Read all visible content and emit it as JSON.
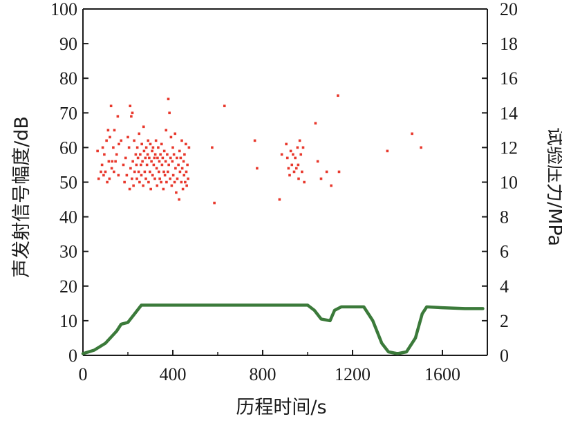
{
  "chart_data": {
    "type": "scatter",
    "xlabel": "历程时间/s",
    "ylabel_left": "声发射信号幅度/dB",
    "ylabel_right": "试验压力/MPa",
    "xlim": [
      0,
      1800
    ],
    "ylim_left": [
      0,
      100
    ],
    "ylim_right": [
      0,
      20
    ],
    "x_ticks": [
      0,
      400,
      800,
      1200,
      1600
    ],
    "y_left_ticks": [
      0,
      10,
      20,
      30,
      40,
      50,
      60,
      70,
      80,
      90,
      100
    ],
    "y_right_ticks": [
      0,
      2,
      4,
      6,
      8,
      10,
      12,
      14,
      16,
      18,
      20
    ],
    "x_tick_labels": [
      "0",
      "400",
      "800",
      "1200",
      "1600"
    ],
    "y_left_tick_labels": [
      "0",
      "10",
      "20",
      "30",
      "40",
      "50",
      "60",
      "70",
      "80",
      "90",
      "100"
    ],
    "y_right_tick_labels": [
      "0",
      "2",
      "4",
      "6",
      "8",
      "10",
      "12",
      "14",
      "16",
      "18",
      "20"
    ],
    "colors": {
      "scatter": "#e8382c",
      "pressure": "#3b7a3a",
      "axis": "#1a1a1a"
    },
    "series": [
      {
        "axis": "left",
        "kind": "scatter",
        "points": [
          [
            65,
            59
          ],
          [
            70,
            51
          ],
          [
            80,
            53
          ],
          [
            85,
            55
          ],
          [
            88,
            60
          ],
          [
            92,
            52
          ],
          [
            95,
            58
          ],
          [
            100,
            53
          ],
          [
            105,
            62
          ],
          [
            108,
            50
          ],
          [
            112,
            65
          ],
          [
            115,
            56
          ],
          [
            118,
            51
          ],
          [
            120,
            63
          ],
          [
            125,
            72
          ],
          [
            128,
            54
          ],
          [
            130,
            56
          ],
          [
            135,
            60
          ],
          [
            138,
            53
          ],
          [
            140,
            65
          ],
          [
            145,
            56
          ],
          [
            150,
            58
          ],
          [
            155,
            69
          ],
          [
            158,
            52
          ],
          [
            160,
            61
          ],
          [
            170,
            62
          ],
          [
            180,
            55
          ],
          [
            185,
            50
          ],
          [
            190,
            57
          ],
          [
            195,
            52
          ],
          [
            200,
            63
          ],
          [
            205,
            60
          ],
          [
            208,
            48
          ],
          [
            210,
            72
          ],
          [
            212,
            54
          ],
          [
            215,
            69
          ],
          [
            218,
            51
          ],
          [
            220,
            70
          ],
          [
            222,
            56
          ],
          [
            225,
            49
          ],
          [
            228,
            62
          ],
          [
            230,
            53
          ],
          [
            235,
            58
          ],
          [
            238,
            55
          ],
          [
            240,
            51
          ],
          [
            242,
            60
          ],
          [
            245,
            57
          ],
          [
            248,
            53
          ],
          [
            250,
            64
          ],
          [
            252,
            50
          ],
          [
            255,
            58
          ],
          [
            258,
            55
          ],
          [
            260,
            52
          ],
          [
            262,
            61
          ],
          [
            265,
            56
          ],
          [
            268,
            49
          ],
          [
            270,
            66
          ],
          [
            272,
            59
          ],
          [
            275,
            53
          ],
          [
            278,
            57
          ],
          [
            280,
            51
          ],
          [
            282,
            60
          ],
          [
            285,
            55
          ],
          [
            288,
            58
          ],
          [
            290,
            62
          ],
          [
            292,
            50
          ],
          [
            295,
            57
          ],
          [
            298,
            53
          ],
          [
            300,
            61
          ],
          [
            302,
            48
          ],
          [
            305,
            56
          ],
          [
            308,
            59
          ],
          [
            310,
            52
          ],
          [
            312,
            60
          ],
          [
            315,
            55
          ],
          [
            318,
            57
          ],
          [
            320,
            51
          ],
          [
            322,
            58
          ],
          [
            325,
            62
          ],
          [
            328,
            54
          ],
          [
            330,
            49
          ],
          [
            332,
            57
          ],
          [
            335,
            60
          ],
          [
            338,
            53
          ],
          [
            340,
            56
          ],
          [
            342,
            51
          ],
          [
            345,
            58
          ],
          [
            348,
            50
          ],
          [
            350,
            61
          ],
          [
            352,
            55
          ],
          [
            355,
            57
          ],
          [
            358,
            48
          ],
          [
            360,
            53
          ],
          [
            362,
            59
          ],
          [
            365,
            52
          ],
          [
            368,
            56
          ],
          [
            370,
            65
          ],
          [
            372,
            50
          ],
          [
            375,
            58
          ],
          [
            378,
            53
          ],
          [
            380,
            74
          ],
          [
            382,
            55
          ],
          [
            385,
            70
          ],
          [
            388,
            51
          ],
          [
            390,
            57
          ],
          [
            392,
            63
          ],
          [
            395,
            49
          ],
          [
            398,
            56
          ],
          [
            400,
            60
          ],
          [
            402,
            52
          ],
          [
            405,
            58
          ],
          [
            408,
            50
          ],
          [
            410,
            64
          ],
          [
            412,
            54
          ],
          [
            415,
            47
          ],
          [
            418,
            57
          ],
          [
            420,
            51
          ],
          [
            425,
            55
          ],
          [
            428,
            45
          ],
          [
            430,
            59
          ],
          [
            432,
            53
          ],
          [
            435,
            57
          ],
          [
            438,
            50
          ],
          [
            440,
            62
          ],
          [
            442,
            54
          ],
          [
            445,
            48
          ],
          [
            448,
            56
          ],
          [
            450,
            52
          ],
          [
            452,
            58
          ],
          [
            455,
            50
          ],
          [
            458,
            61
          ],
          [
            460,
            53
          ],
          [
            462,
            49
          ],
          [
            465,
            55
          ],
          [
            468,
            51
          ],
          [
            472,
            60
          ],
          [
            575,
            60
          ],
          [
            585,
            44
          ],
          [
            630,
            72
          ],
          [
            765,
            62
          ],
          [
            775,
            54
          ],
          [
            875,
            45
          ],
          [
            885,
            58
          ],
          [
            905,
            61
          ],
          [
            910,
            57
          ],
          [
            915,
            54
          ],
          [
            920,
            52
          ],
          [
            925,
            59
          ],
          [
            930,
            55
          ],
          [
            935,
            58
          ],
          [
            940,
            53
          ],
          [
            945,
            57
          ],
          [
            950,
            54
          ],
          [
            955,
            60
          ],
          [
            958,
            55
          ],
          [
            960,
            51
          ],
          [
            965,
            62
          ],
          [
            970,
            58
          ],
          [
            975,
            53
          ],
          [
            980,
            60
          ],
          [
            985,
            50
          ],
          [
            1035,
            67
          ],
          [
            1045,
            56
          ],
          [
            1060,
            51
          ],
          [
            1085,
            53
          ],
          [
            1105,
            49
          ],
          [
            1135,
            75
          ],
          [
            1140,
            53
          ],
          [
            1355,
            59
          ],
          [
            1465,
            64
          ],
          [
            1505,
            60
          ]
        ]
      },
      {
        "axis": "right",
        "kind": "line",
        "points": [
          [
            0,
            0.1
          ],
          [
            50,
            0.3
          ],
          [
            100,
            0.7
          ],
          [
            150,
            1.4
          ],
          [
            170,
            1.8
          ],
          [
            200,
            1.9
          ],
          [
            230,
            2.4
          ],
          [
            260,
            2.9
          ],
          [
            600,
            2.9
          ],
          [
            1000,
            2.9
          ],
          [
            1030,
            2.6
          ],
          [
            1060,
            2.1
          ],
          [
            1100,
            2.0
          ],
          [
            1120,
            2.6
          ],
          [
            1150,
            2.8
          ],
          [
            1250,
            2.8
          ],
          [
            1290,
            2.0
          ],
          [
            1330,
            0.7
          ],
          [
            1360,
            0.2
          ],
          [
            1400,
            0.1
          ],
          [
            1440,
            0.2
          ],
          [
            1480,
            1.0
          ],
          [
            1510,
            2.4
          ],
          [
            1530,
            2.8
          ],
          [
            1600,
            2.75
          ],
          [
            1700,
            2.7
          ],
          [
            1780,
            2.7
          ]
        ]
      }
    ]
  }
}
